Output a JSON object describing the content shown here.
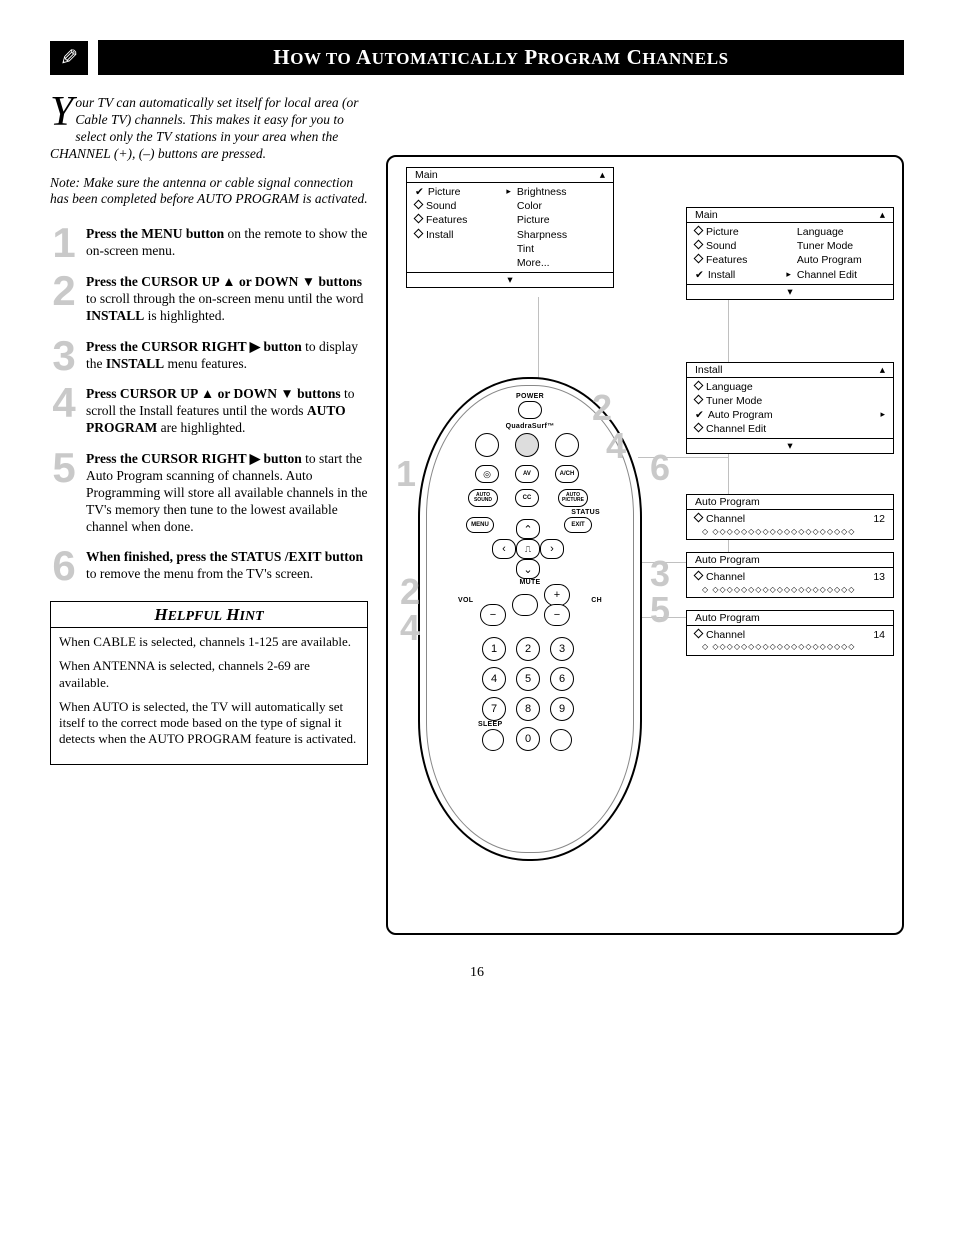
{
  "page_number": "16",
  "title_html": "H<span class='sc'>OW TO</span> A<span class='sc'>UTOMATICALLY</span> P<span class='sc'>ROGRAM</span> C<span class='sc'>HANNELS</span>",
  "intro": "our TV can automatically set itself for local area (or Cable TV) channels. This makes it easy for you to select only the TV stations in your area when the CHANNEL (+), (–) buttons are pressed.",
  "dropcap": "Y",
  "note": "Note: Make sure the antenna or cable signal connection has been completed before AUTO PROGRAM is activated.",
  "steps": [
    {
      "n": "1",
      "html": "<b>Press the MENU button</b> on the remote to show the on-screen menu."
    },
    {
      "n": "2",
      "html": "<b>Press the CURSOR UP ▲ or DOWN ▼ buttons</b> to scroll through the on-screen menu until the word <b>INSTALL</b> is highlighted."
    },
    {
      "n": "3",
      "html": "<b>Press the CURSOR RIGHT ▶ button</b> to display the <b>INSTALL</b> menu features."
    },
    {
      "n": "4",
      "html": "<b>Press CURSOR UP ▲ or DOWN ▼ buttons</b> to scroll the Install features until the words <b>AUTO PROGRAM</b> are highlighted."
    },
    {
      "n": "5",
      "html": "<b>Press the CURSOR RIGHT ▶ button</b> to start the Auto Program scanning of channels. Auto Programming will store all available channels in the TV's memory then tune to the lowest available channel when done."
    },
    {
      "n": "6",
      "html": "<b>When finished, press the STATUS /EXIT button</b> to remove the menu from the TV's screen."
    }
  ],
  "hint_title_html": "H<span class='sc'>ELPFUL</span> H<span class='sc'>INT</span>",
  "hints": [
    "When CABLE is selected, channels 1-125 are available.",
    "When ANTENNA is selected, channels 2-69 are available.",
    "When AUTO is selected, the TV will automatically set itself to the correct mode based on the type of signal it detects when the AUTO PROGRAM feature is activated."
  ],
  "remote": {
    "power": "POWER",
    "brand": "QuadraSurf™",
    "labels": {
      "menu": "MENU",
      "status": "STATUS",
      "exit": "EXIT",
      "mute": "MUTE",
      "vol": "VOL",
      "ch": "CH",
      "sleep": "SLEEP",
      "av": "AV",
      "ach": "A/CH",
      "cc": "CC",
      "auto_sound": "AUTO\nSOUND",
      "auto_picture": "AUTO\nPICTURE"
    }
  },
  "osd_main": {
    "title": "Main",
    "left": [
      {
        "mark": "check",
        "label": "Picture",
        "right": "▸"
      },
      {
        "mark": "diamond",
        "label": "Sound"
      },
      {
        "mark": "diamond",
        "label": "Features"
      },
      {
        "mark": "diamond",
        "label": "Install"
      }
    ],
    "right": [
      "Brightness",
      "Color",
      "Picture",
      "Sharpness",
      "Tint",
      "More..."
    ]
  },
  "osd_install_main": {
    "title": "Main",
    "left": [
      {
        "mark": "diamond",
        "label": "Picture"
      },
      {
        "mark": "diamond",
        "label": "Sound"
      },
      {
        "mark": "diamond",
        "label": "Features"
      },
      {
        "mark": "check",
        "label": "Install",
        "right": "▸"
      }
    ],
    "right": [
      "Language",
      "Tuner Mode",
      "Auto Program",
      "Channel Edit"
    ]
  },
  "osd_install_sub": {
    "title": "Install",
    "items": [
      {
        "mark": "diamond",
        "label": "Language"
      },
      {
        "mark": "diamond",
        "label": "Tuner Mode"
      },
      {
        "mark": "check",
        "label": "Auto Program",
        "right": "▸"
      },
      {
        "mark": "diamond",
        "label": "Channel Edit"
      }
    ]
  },
  "osd_auto": [
    {
      "title": "Auto Program",
      "channel_label": "Channel",
      "channel_num": "12"
    },
    {
      "title": "Auto Program",
      "channel_label": "Channel",
      "channel_num": "13"
    },
    {
      "title": "Auto Program",
      "channel_label": "Channel",
      "channel_num": "14"
    }
  ],
  "big_nums_remote_left": [
    "1",
    "2",
    "4"
  ],
  "big_nums_remote_right_top": [
    "2",
    "4"
  ],
  "big_nums_remote_right": [
    "6",
    "3",
    "5"
  ],
  "colors": {
    "grey_num": "#c9c9c9",
    "line": "#c0c0c0"
  }
}
